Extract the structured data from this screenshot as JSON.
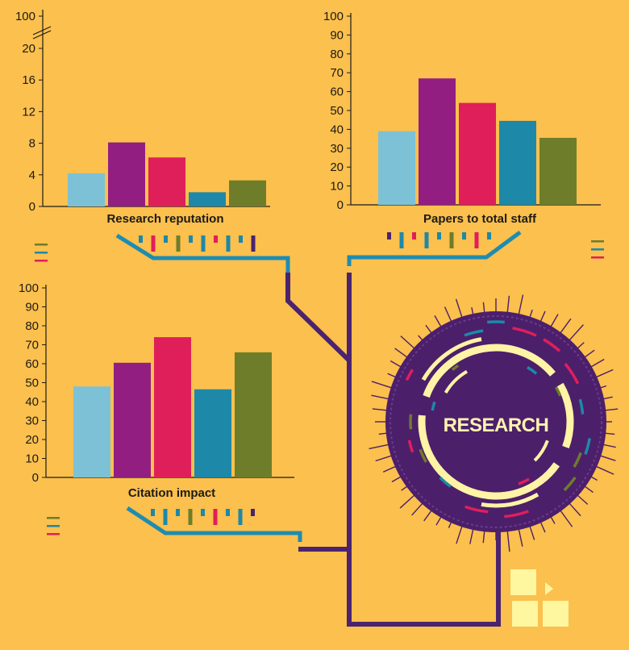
{
  "colors": {
    "background": "#FBC04D",
    "bars": [
      "#7DC1D6",
      "#921E82",
      "#DF1F5A",
      "#1E88A8",
      "#6E7D2A"
    ],
    "circle": "#4C1F6B",
    "pale": "#FFF3A5",
    "connector_purple": "#4C236E",
    "connector_teal": "#1E8CB0"
  },
  "center_label": "RESEARCH",
  "chart_data": [
    {
      "type": "bar",
      "title": "Research reputation",
      "values": [
        4.2,
        8.1,
        6.2,
        1.8,
        3.3
      ],
      "ylim": [
        0,
        22
      ],
      "yticks": [
        "0",
        "4",
        "8",
        "12",
        "16",
        "20"
      ],
      "axis_break_top_label": "100",
      "axis_break": true,
      "grid": false
    },
    {
      "type": "bar",
      "title": "Papers to total staff",
      "values": [
        39,
        67,
        54,
        44.5,
        35.5
      ],
      "ylim": [
        0,
        100
      ],
      "yticks": [
        "0",
        "10",
        "20",
        "30",
        "40",
        "50",
        "60",
        "70",
        "80",
        "90",
        "100"
      ],
      "grid": false
    },
    {
      "type": "bar",
      "title": "Citation impact",
      "values": [
        48,
        60.5,
        74,
        46.5,
        66
      ],
      "ylim": [
        0,
        100
      ],
      "yticks": [
        "0",
        "10",
        "20",
        "30",
        "40",
        "50",
        "60",
        "70",
        "80",
        "90",
        "100"
      ],
      "grid": false
    }
  ],
  "dash_codes": {
    "c1": [
      "#1E88A8",
      "#DF1F5A",
      "#1E88A8",
      "#6E7D2A",
      "#1E88A8",
      "#1E88A8",
      "#DF1F5A",
      "#1E88A8",
      "#1E88A8",
      "#4C236E"
    ],
    "c2": [
      "#4C236E",
      "#1E88A8",
      "#DF1F5A",
      "#1E88A8",
      "#1E88A8",
      "#6E7D2A",
      "#1E88A8",
      "#DF1F5A",
      "#1E88A8"
    ],
    "c3": [
      "#1E88A8",
      "#1E88A8",
      "#1E88A8",
      "#6E7D2A",
      "#1E88A8",
      "#DF1F5A",
      "#1E88A8",
      "#1E88A8",
      "#4C236E"
    ]
  },
  "legend_marks": {
    "l1": [
      "#6E7D2A",
      "#1E88A8",
      "#DF1F5A"
    ],
    "l2": [
      "#6E7D2A",
      "#1E88A8",
      "#DF1F5A"
    ],
    "l3": [
      "#6E7D2A",
      "#1E88A8",
      "#DF1F5A"
    ]
  }
}
